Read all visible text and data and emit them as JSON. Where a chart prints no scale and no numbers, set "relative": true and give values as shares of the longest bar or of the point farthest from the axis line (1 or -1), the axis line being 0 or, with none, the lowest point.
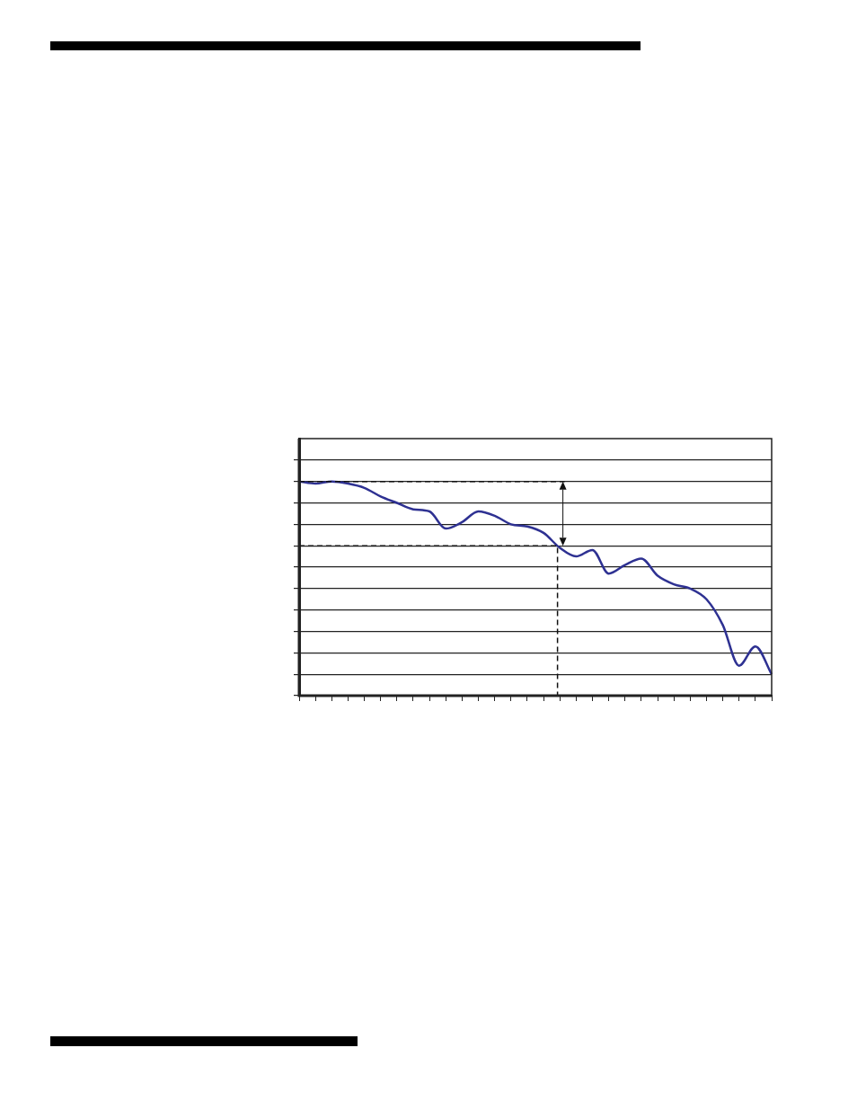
{
  "chart_data": {
    "type": "line",
    "categories": [
      null,
      null,
      null,
      null,
      null,
      null,
      null,
      null,
      null,
      null,
      null,
      null,
      null,
      null,
      null,
      null,
      null,
      null,
      null,
      null,
      null,
      null,
      null,
      null,
      null,
      null,
      null,
      null,
      null,
      null
    ],
    "values": [
      1.0,
      0.99,
      1.0,
      0.99,
      0.97,
      0.93,
      0.9,
      0.87,
      0.86,
      0.78,
      0.81,
      0.86,
      0.84,
      0.8,
      0.79,
      0.76,
      0.69,
      0.65,
      0.68,
      0.57,
      0.61,
      0.64,
      0.56,
      0.52,
      0.5,
      0.45,
      0.33,
      0.14,
      0.23,
      0.1
    ],
    "color": "#2e3192",
    "relative": true,
    "ref_lines": [
      {
        "axis": "y",
        "value": 1.0,
        "line_style": "dashed"
      },
      {
        "axis": "y",
        "value": 0.7,
        "line_style": "dashed"
      }
    ],
    "grid": "y",
    "marker": "none",
    "line_style": "solid"
  }
}
